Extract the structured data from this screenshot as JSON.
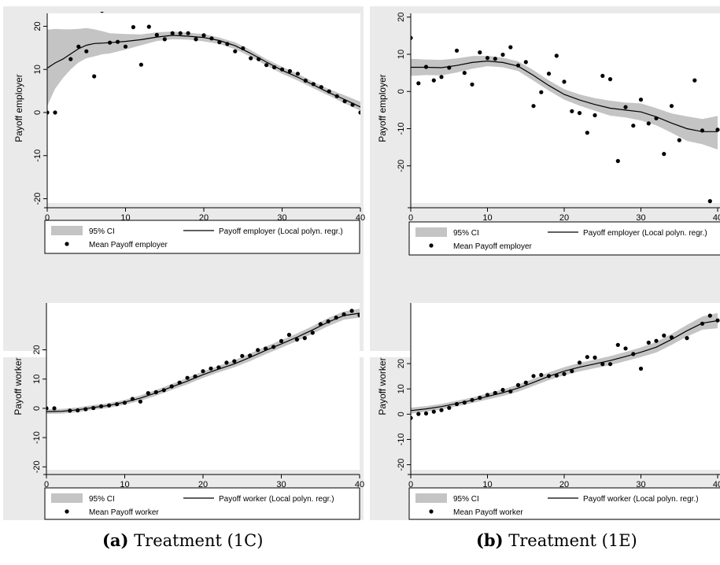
{
  "captions": [
    {
      "letter": "(a)",
      "text": "Treatment (1C)"
    },
    {
      "letter": "(b)",
      "text": "Treatment (1E)"
    }
  ],
  "chart_data": [
    {
      "type": "line",
      "xlim": [
        0,
        40
      ],
      "ylim": [
        -21,
        23
      ],
      "xticks": [
        0,
        10,
        20,
        30,
        40
      ],
      "yticks": [
        -20,
        -10,
        0,
        10,
        20
      ],
      "ytick_labels": [
        "-20",
        "-10",
        "0",
        "10",
        "20"
      ],
      "xlabel": "",
      "ylabel": "Payoff employer",
      "legend": {
        "ci": "95% CI",
        "fit": "Payoff employer (Local polyn. regr.)",
        "mean": "Mean Payoff employer",
        "placement": "bottom"
      },
      "fit": {
        "x": [
          0,
          1,
          2,
          3,
          4,
          5,
          6,
          7,
          8,
          10,
          12,
          14,
          16,
          18,
          20,
          22,
          24,
          26,
          28,
          30,
          32,
          34,
          36,
          38,
          40
        ],
        "y": [
          10.3,
          11.5,
          12.4,
          13.6,
          14.8,
          15.6,
          16.0,
          16.1,
          16.2,
          16.5,
          16.9,
          17.5,
          17.9,
          17.7,
          17.4,
          16.7,
          15.5,
          13.7,
          11.7,
          9.8,
          8.2,
          6.4,
          4.6,
          3.0,
          1.3
        ]
      },
      "ci": {
        "x": [
          0,
          1,
          2,
          3,
          4,
          5,
          6,
          7,
          8,
          10,
          12,
          14,
          16,
          18,
          20,
          22,
          24,
          26,
          28,
          30,
          32,
          34,
          36,
          38,
          40
        ],
        "upper": [
          19.2,
          19.4,
          19.3,
          19.3,
          19.4,
          19.6,
          19.3,
          18.9,
          18.4,
          18.2,
          18.1,
          18.6,
          18.8,
          18.5,
          18.2,
          17.4,
          16.3,
          14.5,
          12.4,
          10.6,
          9.0,
          7.1,
          5.4,
          4.0,
          2.5
        ],
        "lower": [
          1.5,
          5.5,
          8.0,
          10.0,
          11.6,
          12.6,
          13.0,
          13.5,
          13.7,
          14.6,
          15.6,
          16.6,
          17.0,
          16.9,
          16.5,
          15.9,
          14.7,
          12.9,
          10.9,
          9.0,
          7.4,
          5.6,
          3.9,
          2.1,
          0.4
        ]
      },
      "points": {
        "x": [
          0,
          1,
          3,
          4,
          5,
          6,
          7,
          8,
          9,
          10,
          11,
          12,
          13,
          14,
          15,
          16,
          17,
          18,
          19,
          20,
          21,
          22,
          23,
          24,
          25,
          26,
          27,
          28,
          29,
          30,
          31,
          32,
          33,
          34,
          35,
          36,
          37,
          38,
          39,
          40
        ],
        "y": [
          0,
          0,
          12.4,
          15.3,
          14.2,
          8.4,
          23.6,
          16.2,
          16.4,
          15.3,
          19.8,
          11.1,
          19.9,
          18.0,
          17.0,
          18.4,
          18.4,
          18.4,
          17.0,
          17.9,
          17.2,
          16.3,
          15.9,
          14.2,
          14.9,
          12.6,
          12.4,
          11.0,
          10.5,
          10.0,
          9.6,
          9.0,
          7.4,
          6.6,
          5.9,
          4.9,
          3.8,
          2.6,
          1.8,
          0
        ]
      }
    },
    {
      "type": "line",
      "xlim": [
        0,
        40
      ],
      "ylim": [
        -30,
        21
      ],
      "xticks": [
        0,
        10,
        20,
        30,
        40
      ],
      "yticks": [
        -20,
        -10,
        0,
        10,
        20
      ],
      "ytick_labels": [
        "-20",
        "-10",
        "0",
        "10",
        "20"
      ],
      "xlabel": "",
      "ylabel": "Payoff employer",
      "legend": {
        "ci": "95% CI",
        "fit": "Payoff employer (Local polyn. regr.)",
        "mean": "Mean Payoff employer",
        "placement": "bottom"
      },
      "fit": {
        "x": [
          0,
          2,
          4,
          6,
          8,
          10,
          12,
          14,
          16,
          18,
          20,
          22,
          24,
          26,
          28,
          30,
          32,
          34,
          36,
          38,
          40
        ],
        "y": [
          6.5,
          6.5,
          6.4,
          7.0,
          7.8,
          8.2,
          7.8,
          6.8,
          4.3,
          1.6,
          -0.8,
          -2.3,
          -3.5,
          -4.5,
          -5.0,
          -5.5,
          -6.8,
          -8.5,
          -10.0,
          -10.8,
          -10.8
        ]
      },
      "ci": {
        "x": [
          0,
          2,
          4,
          6,
          8,
          10,
          12,
          14,
          16,
          18,
          20,
          22,
          24,
          26,
          28,
          30,
          32,
          34,
          36,
          38,
          40
        ],
        "upper": [
          8.8,
          8.6,
          8.5,
          8.9,
          9.5,
          9.6,
          9.1,
          8.1,
          5.7,
          3.0,
          0.6,
          -0.8,
          -1.8,
          -2.5,
          -3.0,
          -3.2,
          -4.5,
          -5.9,
          -6.7,
          -7.4,
          -6.6
        ],
        "lower": [
          4.2,
          4.4,
          4.3,
          5.1,
          6.1,
          6.8,
          6.5,
          5.5,
          2.9,
          0.2,
          -2.2,
          -3.8,
          -5.2,
          -6.5,
          -7.0,
          -7.8,
          -9.1,
          -11.1,
          -13.3,
          -14.2,
          -15.6
        ]
      },
      "points": {
        "x": [
          0,
          1,
          2,
          3,
          4,
          5,
          6,
          7,
          8,
          9,
          10,
          11,
          12,
          13,
          14,
          15,
          16,
          17,
          18,
          19,
          20,
          21,
          22,
          23,
          24,
          25,
          26,
          27,
          28,
          29,
          30,
          31,
          32,
          33,
          34,
          35,
          37,
          38,
          39,
          40
        ],
        "y": [
          14.4,
          2.2,
          6.6,
          3.0,
          3.9,
          6.4,
          11.0,
          5.0,
          1.9,
          10.5,
          9.0,
          8.8,
          9.9,
          11.9,
          7.0,
          7.9,
          -3.9,
          -0.2,
          4.8,
          9.6,
          2.6,
          -5.3,
          -5.8,
          -11.1,
          -6.4,
          4.2,
          3.3,
          -18.7,
          -4.2,
          -9.2,
          -2.2,
          -8.6,
          -7.2,
          -16.8,
          -3.9,
          -13.1,
          3.0,
          -10.5,
          -29.5,
          -10.3
        ]
      }
    },
    {
      "type": "line",
      "xlim": [
        0,
        40
      ],
      "ylim": [
        -21,
        36
      ],
      "xticks": [
        0,
        10,
        20,
        30,
        40
      ],
      "yticks": [
        -20,
        -10,
        0,
        10,
        20
      ],
      "ytick_labels": [
        "-20",
        "-10",
        "0",
        "10",
        "20"
      ],
      "xlabel": "",
      "ylabel": "Payoff worker",
      "legend": {
        "ci": "95% CI",
        "fit": "Payoff worker (Local polyn. regr.)",
        "mean": "Mean Payoff worker",
        "placement": "bottom"
      },
      "fit": {
        "x": [
          0,
          2,
          4,
          6,
          8,
          10,
          12,
          14,
          16,
          18,
          20,
          22,
          24,
          26,
          28,
          30,
          32,
          34,
          36,
          38,
          40
        ],
        "y": [
          -1.1,
          -1.0,
          -0.5,
          0.3,
          1.0,
          2.1,
          3.5,
          5.3,
          7.3,
          9.3,
          11.5,
          13.4,
          15.2,
          17.4,
          19.8,
          22.0,
          24.3,
          26.8,
          29.5,
          31.7,
          32.5
        ]
      },
      "ci": {
        "x": [
          0,
          2,
          4,
          6,
          8,
          10,
          12,
          14,
          16,
          18,
          20,
          22,
          24,
          26,
          28,
          30,
          32,
          34,
          36,
          38,
          40
        ],
        "upper": [
          -0.3,
          -0.2,
          0.3,
          1.1,
          1.8,
          2.9,
          4.4,
          6.3,
          8.3,
          10.4,
          12.6,
          14.5,
          16.4,
          18.7,
          21.1,
          23.3,
          25.6,
          28.1,
          30.9,
          33.1,
          34.0
        ],
        "lower": [
          -1.9,
          -1.8,
          -1.3,
          -0.5,
          0.2,
          1.3,
          2.6,
          4.3,
          6.3,
          8.2,
          10.4,
          12.3,
          14.0,
          16.1,
          18.5,
          20.7,
          23.0,
          25.5,
          28.1,
          30.3,
          31.0
        ]
      },
      "points": {
        "x": [
          0,
          1,
          3,
          4,
          5,
          6,
          7,
          8,
          9,
          10,
          11,
          12,
          13,
          14,
          15,
          16,
          17,
          18,
          19,
          20,
          21,
          22,
          23,
          24,
          25,
          26,
          27,
          28,
          29,
          30,
          31,
          32,
          33,
          34,
          35,
          36,
          37,
          38,
          39,
          40
        ],
        "y": [
          0,
          0,
          -0.8,
          -0.7,
          -0.3,
          0.1,
          0.7,
          1.0,
          1.4,
          1.9,
          3.2,
          2.3,
          5.2,
          5.5,
          6.2,
          7.5,
          8.8,
          10.4,
          10.9,
          12.7,
          13.6,
          14.0,
          15.6,
          16.1,
          17.9,
          18.0,
          19.9,
          20.4,
          21.0,
          23.0,
          25.1,
          23.5,
          24.0,
          25.8,
          28.8,
          29.7,
          31.0,
          32.1,
          33.3,
          31.8
        ]
      }
    },
    {
      "type": "line",
      "xlim": [
        0,
        40
      ],
      "ylim": [
        -22,
        44
      ],
      "xticks": [
        0,
        10,
        20,
        30,
        40
      ],
      "yticks": [
        -20,
        -10,
        0,
        10,
        20
      ],
      "ytick_labels": [
        "-20",
        "-10",
        "0",
        "10",
        "20"
      ],
      "xlabel": "",
      "ylabel": "Payoff worker",
      "legend": {
        "ci": "95% CI",
        "fit": "Payoff worker (Local polyn. regr.)",
        "mean": "Mean Payoff worker",
        "placement": "bottom"
      },
      "fit": {
        "x": [
          0,
          2,
          4,
          6,
          8,
          10,
          12,
          14,
          16,
          18,
          20,
          22,
          24,
          26,
          28,
          30,
          32,
          34,
          36,
          38,
          40
        ],
        "y": [
          1.4,
          2.1,
          3.0,
          4.2,
          5.5,
          7.0,
          8.5,
          10.3,
          12.6,
          15.0,
          17.0,
          18.6,
          19.9,
          21.2,
          22.8,
          24.5,
          26.5,
          29.6,
          33.0,
          36.0,
          37.0
        ]
      },
      "ci": {
        "x": [
          0,
          2,
          4,
          6,
          8,
          10,
          12,
          14,
          16,
          18,
          20,
          22,
          24,
          26,
          28,
          30,
          32,
          34,
          36,
          38,
          40
        ],
        "upper": [
          2.6,
          3.2,
          4.1,
          5.3,
          6.6,
          8.2,
          9.8,
          11.7,
          14.0,
          16.5,
          18.6,
          20.3,
          21.6,
          23.0,
          24.6,
          26.4,
          28.6,
          31.8,
          35.3,
          38.6,
          40.0
        ],
        "lower": [
          0.2,
          1.0,
          1.9,
          3.1,
          4.4,
          5.8,
          7.2,
          8.9,
          11.2,
          13.5,
          15.4,
          16.9,
          18.2,
          19.4,
          21.0,
          22.6,
          24.4,
          27.4,
          30.7,
          33.4,
          34.0
        ]
      },
      "points": {
        "x": [
          0,
          1,
          2,
          3,
          4,
          5,
          6,
          7,
          8,
          9,
          10,
          11,
          12,
          13,
          14,
          15,
          16,
          17,
          18,
          19,
          20,
          21,
          22,
          23,
          24,
          25,
          26,
          27,
          28,
          29,
          30,
          31,
          32,
          33,
          34,
          36,
          38,
          39,
          40
        ],
        "y": [
          -1.5,
          0.1,
          0.3,
          1.0,
          1.6,
          2.5,
          4.0,
          4.6,
          5.6,
          6.5,
          7.6,
          8.4,
          9.6,
          9.0,
          11.5,
          12.5,
          15.1,
          15.5,
          15.1,
          15.3,
          15.9,
          17.0,
          20.4,
          22.6,
          22.4,
          19.8,
          19.8,
          27.4,
          26.0,
          23.8,
          18.0,
          28.3,
          29.0,
          31.1,
          30.4,
          30.1,
          35.8,
          39.0,
          37.1
        ]
      }
    }
  ]
}
